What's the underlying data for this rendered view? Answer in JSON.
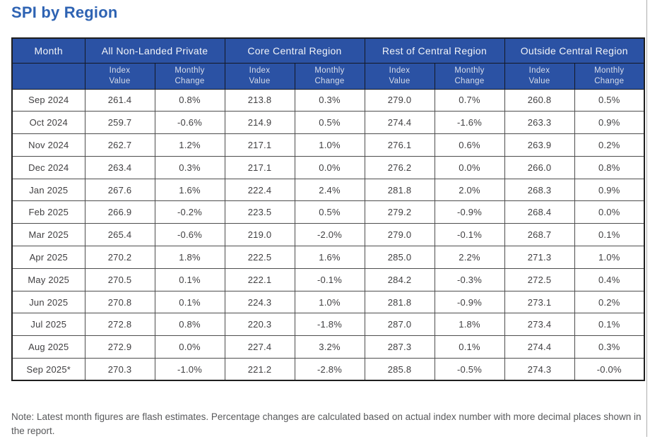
{
  "page": {
    "title": "SPI by Region",
    "note": "Note: Latest month figures are flash estimates. Percentage changes are calculated based on actual index number with more decimal places shown in the report."
  },
  "colors": {
    "header_bg": "#2b52a4",
    "header_text": "#f2f4f8",
    "subheader_text": "#d8dde9",
    "title_text": "#2e63b3",
    "body_text": "#414042",
    "outer_border": "#1f1f1f",
    "inner_border": "#4d4d4d",
    "note_text": "#58595b"
  },
  "table": {
    "month_header": "Month",
    "groups": [
      "All Non-Landed Private",
      "Core Central Region",
      "Rest of Central Region",
      "Outside Central Region"
    ],
    "subheaders": {
      "index_value": "Index\nValue",
      "monthly_change": "Monthly\nChange"
    },
    "rows": [
      {
        "month": "Sep 2024",
        "values": [
          "261.4",
          "0.8%",
          "213.8",
          "0.3%",
          "279.0",
          "0.7%",
          "260.8",
          "0.5%"
        ]
      },
      {
        "month": "Oct 2024",
        "values": [
          "259.7",
          "-0.6%",
          "214.9",
          "0.5%",
          "274.4",
          "-1.6%",
          "263.3",
          "0.9%"
        ]
      },
      {
        "month": "Nov 2024",
        "values": [
          "262.7",
          "1.2%",
          "217.1",
          "1.0%",
          "276.1",
          "0.6%",
          "263.9",
          "0.2%"
        ]
      },
      {
        "month": "Dec 2024",
        "values": [
          "263.4",
          "0.3%",
          "217.1",
          "0.0%",
          "276.2",
          "0.0%",
          "266.0",
          "0.8%"
        ]
      },
      {
        "month": "Jan 2025",
        "values": [
          "267.6",
          "1.6%",
          "222.4",
          "2.4%",
          "281.8",
          "2.0%",
          "268.3",
          "0.9%"
        ]
      },
      {
        "month": "Feb 2025",
        "values": [
          "266.9",
          "-0.2%",
          "223.5",
          "0.5%",
          "279.2",
          "-0.9%",
          "268.4",
          "0.0%"
        ]
      },
      {
        "month": "Mar 2025",
        "values": [
          "265.4",
          "-0.6%",
          "219.0",
          "-2.0%",
          "279.0",
          "-0.1%",
          "268.7",
          "0.1%"
        ]
      },
      {
        "month": "Apr 2025",
        "values": [
          "270.2",
          "1.8%",
          "222.5",
          "1.6%",
          "285.0",
          "2.2%",
          "271.3",
          "1.0%"
        ]
      },
      {
        "month": "May 2025",
        "values": [
          "270.5",
          "0.1%",
          "222.1",
          "-0.1%",
          "284.2",
          "-0.3%",
          "272.5",
          "0.4%"
        ]
      },
      {
        "month": "Jun 2025",
        "values": [
          "270.8",
          "0.1%",
          "224.3",
          "1.0%",
          "281.8",
          "-0.9%",
          "273.1",
          "0.2%"
        ]
      },
      {
        "month": "Jul 2025",
        "values": [
          "272.8",
          "0.8%",
          "220.3",
          "-1.8%",
          "287.0",
          "1.8%",
          "273.4",
          "0.1%"
        ]
      },
      {
        "month": "Aug 2025",
        "values": [
          "272.9",
          "0.0%",
          "227.4",
          "3.2%",
          "287.3",
          "0.1%",
          "274.4",
          "0.3%"
        ]
      },
      {
        "month": "Sep 2025*",
        "values": [
          "270.3",
          "-1.0%",
          "221.2",
          "-2.8%",
          "285.8",
          "-0.5%",
          "274.3",
          "-0.0%"
        ]
      }
    ]
  },
  "chart_data": {
    "type": "table",
    "title": "SPI by Region",
    "columns": [
      "Month",
      "All Non-Landed Private Index Value",
      "All Non-Landed Private Monthly Change",
      "Core Central Region Index Value",
      "Core Central Region Monthly Change",
      "Rest of Central Region Index Value",
      "Rest of Central Region Monthly Change",
      "Outside Central Region Index Value",
      "Outside Central Region Monthly Change"
    ],
    "rows": [
      [
        "Sep 2024",
        261.4,
        "0.8%",
        213.8,
        "0.3%",
        279.0,
        "0.7%",
        260.8,
        "0.5%"
      ],
      [
        "Oct 2024",
        259.7,
        "-0.6%",
        214.9,
        "0.5%",
        274.4,
        "-1.6%",
        263.3,
        "0.9%"
      ],
      [
        "Nov 2024",
        262.7,
        "1.2%",
        217.1,
        "1.0%",
        276.1,
        "0.6%",
        263.9,
        "0.2%"
      ],
      [
        "Dec 2024",
        263.4,
        "0.3%",
        217.1,
        "0.0%",
        276.2,
        "0.0%",
        266.0,
        "0.8%"
      ],
      [
        "Jan 2025",
        267.6,
        "1.6%",
        222.4,
        "2.4%",
        281.8,
        "2.0%",
        268.3,
        "0.9%"
      ],
      [
        "Feb 2025",
        266.9,
        "-0.2%",
        223.5,
        "0.5%",
        279.2,
        "-0.9%",
        268.4,
        "0.0%"
      ],
      [
        "Mar 2025",
        265.4,
        "-0.6%",
        219.0,
        "-2.0%",
        279.0,
        "-0.1%",
        268.7,
        "0.1%"
      ],
      [
        "Apr 2025",
        270.2,
        "1.8%",
        222.5,
        "1.6%",
        285.0,
        "2.2%",
        271.3,
        "1.0%"
      ],
      [
        "May 2025",
        270.5,
        "0.1%",
        222.1,
        "-0.1%",
        284.2,
        "-0.3%",
        272.5,
        "0.4%"
      ],
      [
        "Jun 2025",
        270.8,
        "0.1%",
        224.3,
        "1.0%",
        281.8,
        "-0.9%",
        273.1,
        "0.2%"
      ],
      [
        "Jul 2025",
        272.8,
        "0.8%",
        220.3,
        "-1.8%",
        287.0,
        "1.8%",
        273.4,
        "0.1%"
      ],
      [
        "Aug 2025",
        272.9,
        "0.0%",
        227.4,
        "3.2%",
        287.3,
        "0.1%",
        274.4,
        "0.3%"
      ],
      [
        "Sep 2025*",
        270.3,
        "-1.0%",
        221.2,
        "-2.8%",
        285.8,
        "-0.5%",
        274.3,
        "-0.0%"
      ]
    ]
  }
}
